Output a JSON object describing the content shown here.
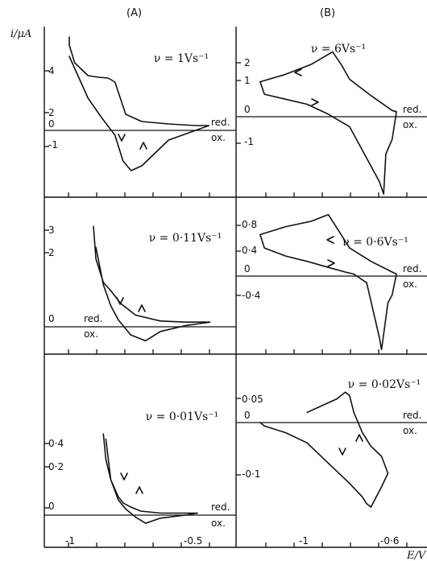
{
  "col_labels": {
    "a": "(A)",
    "b": "(B)"
  },
  "y_axis_label": "i/μA",
  "x_axis_label": "E/V",
  "marks": {
    "red": "red.",
    "ox": "ox."
  },
  "chart_data": [
    {
      "id": "A1",
      "type": "line",
      "title": "ν = 1Vs⁻¹",
      "y_ticks": [
        "4",
        "2",
        "0",
        "-1"
      ],
      "x": [
        -1.07,
        -1.07,
        -1.05,
        -1.0,
        -0.96,
        -0.925,
        -0.9,
        -0.86,
        -0.8,
        -0.7,
        -0.6,
        -0.55,
        -0.6,
        -0.7,
        -0.8,
        -0.84,
        -0.87,
        -0.9,
        -0.95,
        -1.0,
        -1.07
      ],
      "y": [
        5.8,
        5.3,
        4.2,
        3.4,
        3.3,
        3.25,
        3.0,
        1.0,
        0.55,
        0.4,
        0.3,
        0.3,
        0.0,
        -0.6,
        -2.2,
        -2.5,
        -1.9,
        -0.3,
        0.8,
        2.0,
        4.6
      ]
    },
    {
      "id": "B1",
      "type": "line",
      "title": "ν = 6Vs⁻¹",
      "y_ticks": [
        "2",
        "1",
        "0",
        "-1"
      ],
      "x": [
        -1.22,
        -1.1,
        -0.98,
        -0.88,
        -0.84,
        -0.8,
        -0.7,
        -0.6,
        -0.58,
        -0.6,
        -0.63,
        -0.64,
        -0.66,
        -0.8,
        -0.9,
        -1.0,
        -1.1,
        -1.2,
        -1.22
      ],
      "y": [
        1.4,
        1.7,
        2.1,
        2.6,
        2.1,
        1.5,
        0.85,
        0.25,
        0.2,
        -0.9,
        -1.5,
        -3.1,
        -2.6,
        -0.4,
        0.1,
        0.5,
        0.7,
        0.9,
        1.4
      ]
    },
    {
      "id": "A2",
      "type": "line",
      "title": "ν = 0·11Vs⁻¹",
      "y_ticks": [
        "3",
        "2",
        "0"
      ],
      "x": [
        -0.97,
        -0.96,
        -0.93,
        -0.9,
        -0.86,
        -0.8,
        -0.7,
        -0.6,
        -0.5,
        -0.6,
        -0.7,
        -0.76,
        -0.82,
        -0.87,
        -0.9,
        -0.93,
        -0.96
      ],
      "y": [
        4.3,
        2.9,
        1.9,
        1.55,
        1.0,
        0.5,
        0.25,
        0.2,
        0.2,
        0.05,
        -0.2,
        -0.6,
        -0.35,
        0.3,
        0.9,
        1.8,
        3.4
      ]
    },
    {
      "id": "B2",
      "type": "line",
      "title": "ν = 0·6Vs⁻¹",
      "y_ticks": [
        "0·8",
        "0·4",
        "0",
        "-0·4"
      ],
      "x": [
        -1.22,
        -1.1,
        -0.98,
        -0.9,
        -0.86,
        -0.8,
        -0.7,
        -0.6,
        -0.58,
        -0.6,
        -0.62,
        -0.65,
        -0.66,
        -0.72,
        -0.78,
        -0.82,
        -0.9,
        -1.0,
        -1.1,
        -1.2,
        -1.22
      ],
      "y": [
        0.62,
        0.74,
        0.82,
        0.92,
        0.72,
        0.42,
        0.22,
        0.06,
        0.03,
        -0.28,
        -0.4,
        -1.1,
        -0.92,
        -0.1,
        0.03,
        0.06,
        0.13,
        0.22,
        0.3,
        0.42,
        0.62
      ]
    },
    {
      "id": "A3",
      "type": "line",
      "title": "ν = 0·01Vs⁻¹",
      "y_ticks": [
        "0·4",
        "0·2",
        "0"
      ],
      "x": [
        -0.93,
        -0.92,
        -0.9,
        -0.87,
        -0.85,
        -0.82,
        -0.78,
        -0.7,
        -0.6,
        -0.55,
        -0.6,
        -0.7,
        -0.76,
        -0.8,
        -0.84,
        -0.87,
        -0.9,
        -0.92
      ],
      "y": [
        0.8,
        0.55,
        0.35,
        0.18,
        0.12,
        0.08,
        0.04,
        0.02,
        0.02,
        0.02,
        0.0,
        -0.03,
        -0.08,
        -0.02,
        0.06,
        0.15,
        0.35,
        0.75
      ]
    },
    {
      "id": "B3",
      "type": "line",
      "title": "ν = 0·02Vs⁻¹",
      "y_ticks": [
        "0·05",
        "0",
        "-0·1"
      ],
      "x": [
        -1.0,
        -0.93,
        -0.86,
        -0.82,
        -0.8,
        -0.78,
        -0.74,
        -0.7,
        -0.65,
        -0.62,
        -0.65,
        -0.7,
        -0.72,
        -0.74,
        -0.8,
        -0.9,
        -1.0,
        -1.1,
        -1.2,
        -1.22
      ],
      "y": [
        0.03,
        0.05,
        0.07,
        0.09,
        0.08,
        0.03,
        -0.03,
        -0.07,
        -0.1,
        -0.15,
        -0.19,
        -0.25,
        -0.24,
        -0.22,
        -0.18,
        -0.12,
        -0.06,
        -0.03,
        -0.01,
        0.0
      ]
    }
  ],
  "x_axis": {
    "ticks": [
      "-1",
      "-0.5",
      "-1",
      "-0·6"
    ]
  }
}
